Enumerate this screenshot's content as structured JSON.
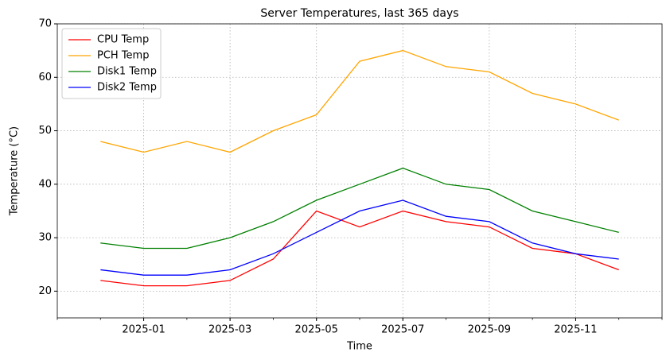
{
  "chart_data": {
    "type": "line",
    "title": "Server Temperatures, last 365 days",
    "x_label": "Time",
    "y_label": "Temperature (°C)",
    "x": [
      "2024-12",
      "2025-01",
      "2025-02",
      "2025-03",
      "2025-04",
      "2025-05",
      "2025-06",
      "2025-07",
      "2025-08",
      "2025-09",
      "2025-10",
      "2025-11",
      "2025-12"
    ],
    "series": [
      {
        "name": "CPU Temp",
        "color": "#ff0000",
        "values": [
          22,
          21,
          21,
          22,
          26,
          35,
          32,
          35,
          33,
          32,
          28,
          27,
          24
        ]
      },
      {
        "name": "PCH Temp",
        "color": "#ffa500",
        "values": [
          48,
          46,
          48,
          46,
          50,
          53,
          63,
          65,
          62,
          61,
          57,
          55,
          52
        ]
      },
      {
        "name": "Disk1 Temp",
        "color": "#008000",
        "values": [
          29,
          28,
          28,
          30,
          33,
          37,
          40,
          43,
          40,
          39,
          35,
          33,
          31
        ]
      },
      {
        "name": "Disk2 Temp",
        "color": "#0000ff",
        "values": [
          24,
          23,
          23,
          24,
          27,
          31,
          35,
          37,
          34,
          33,
          29,
          27,
          26
        ]
      }
    ],
    "xlim": [
      "2024-11",
      "2026-01"
    ],
    "xticks": [
      "2025-01",
      "2025-03",
      "2025-05",
      "2025-07",
      "2025-09",
      "2025-11"
    ],
    "ylim": [
      15,
      70
    ],
    "yticks": [
      20,
      30,
      40,
      50,
      60,
      70
    ],
    "grid": true,
    "legend": "upper left"
  }
}
